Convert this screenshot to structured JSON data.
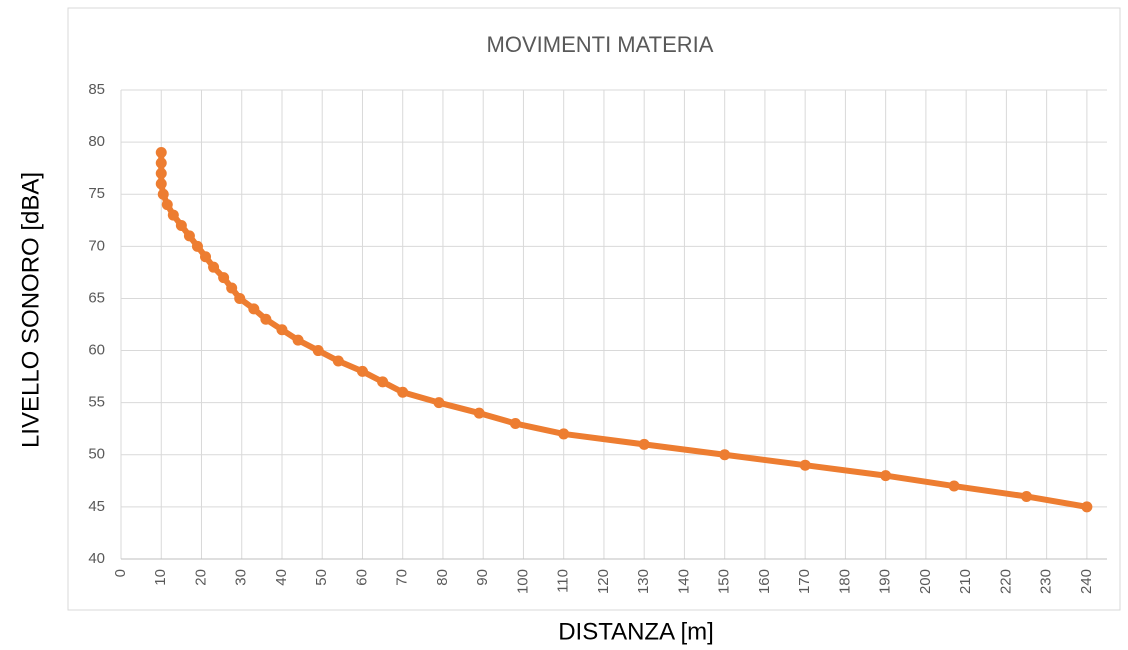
{
  "chart_data": {
    "type": "scatter-line",
    "title": "MOVIMENTI MATERIA",
    "x_label": "DISTANZA [m]",
    "y_label": "LIVELLO SONORO [dBA]",
    "series": [
      {
        "name": "LIVELLO SONORO",
        "color": "#ed7d31",
        "x": [
          10,
          10,
          10,
          10,
          10.5,
          11.5,
          13,
          15,
          17,
          19,
          21,
          23,
          25.5,
          27.5,
          29.5,
          33,
          36,
          40,
          44,
          49,
          54,
          60,
          65,
          70,
          79,
          89,
          98,
          110,
          130,
          150,
          170,
          190,
          207,
          225,
          240
        ],
        "values": [
          79,
          78,
          77,
          76,
          75,
          74,
          73,
          72,
          71,
          70,
          69,
          68,
          67,
          66,
          65,
          64,
          63,
          62,
          61,
          60,
          59,
          58,
          57,
          56,
          55,
          54,
          53,
          52,
          51,
          50,
          49,
          48,
          47,
          46,
          45
        ]
      }
    ],
    "xlim": [
      0,
      245
    ],
    "xticks": [
      0,
      10,
      20,
      30,
      40,
      50,
      60,
      70,
      80,
      90,
      100,
      110,
      120,
      130,
      140,
      150,
      160,
      170,
      180,
      190,
      200,
      210,
      220,
      230,
      240
    ],
    "ylim": [
      40,
      85
    ],
    "yticks": [
      40,
      45,
      50,
      55,
      60,
      65,
      70,
      75,
      80,
      85
    ],
    "grid": true
  }
}
